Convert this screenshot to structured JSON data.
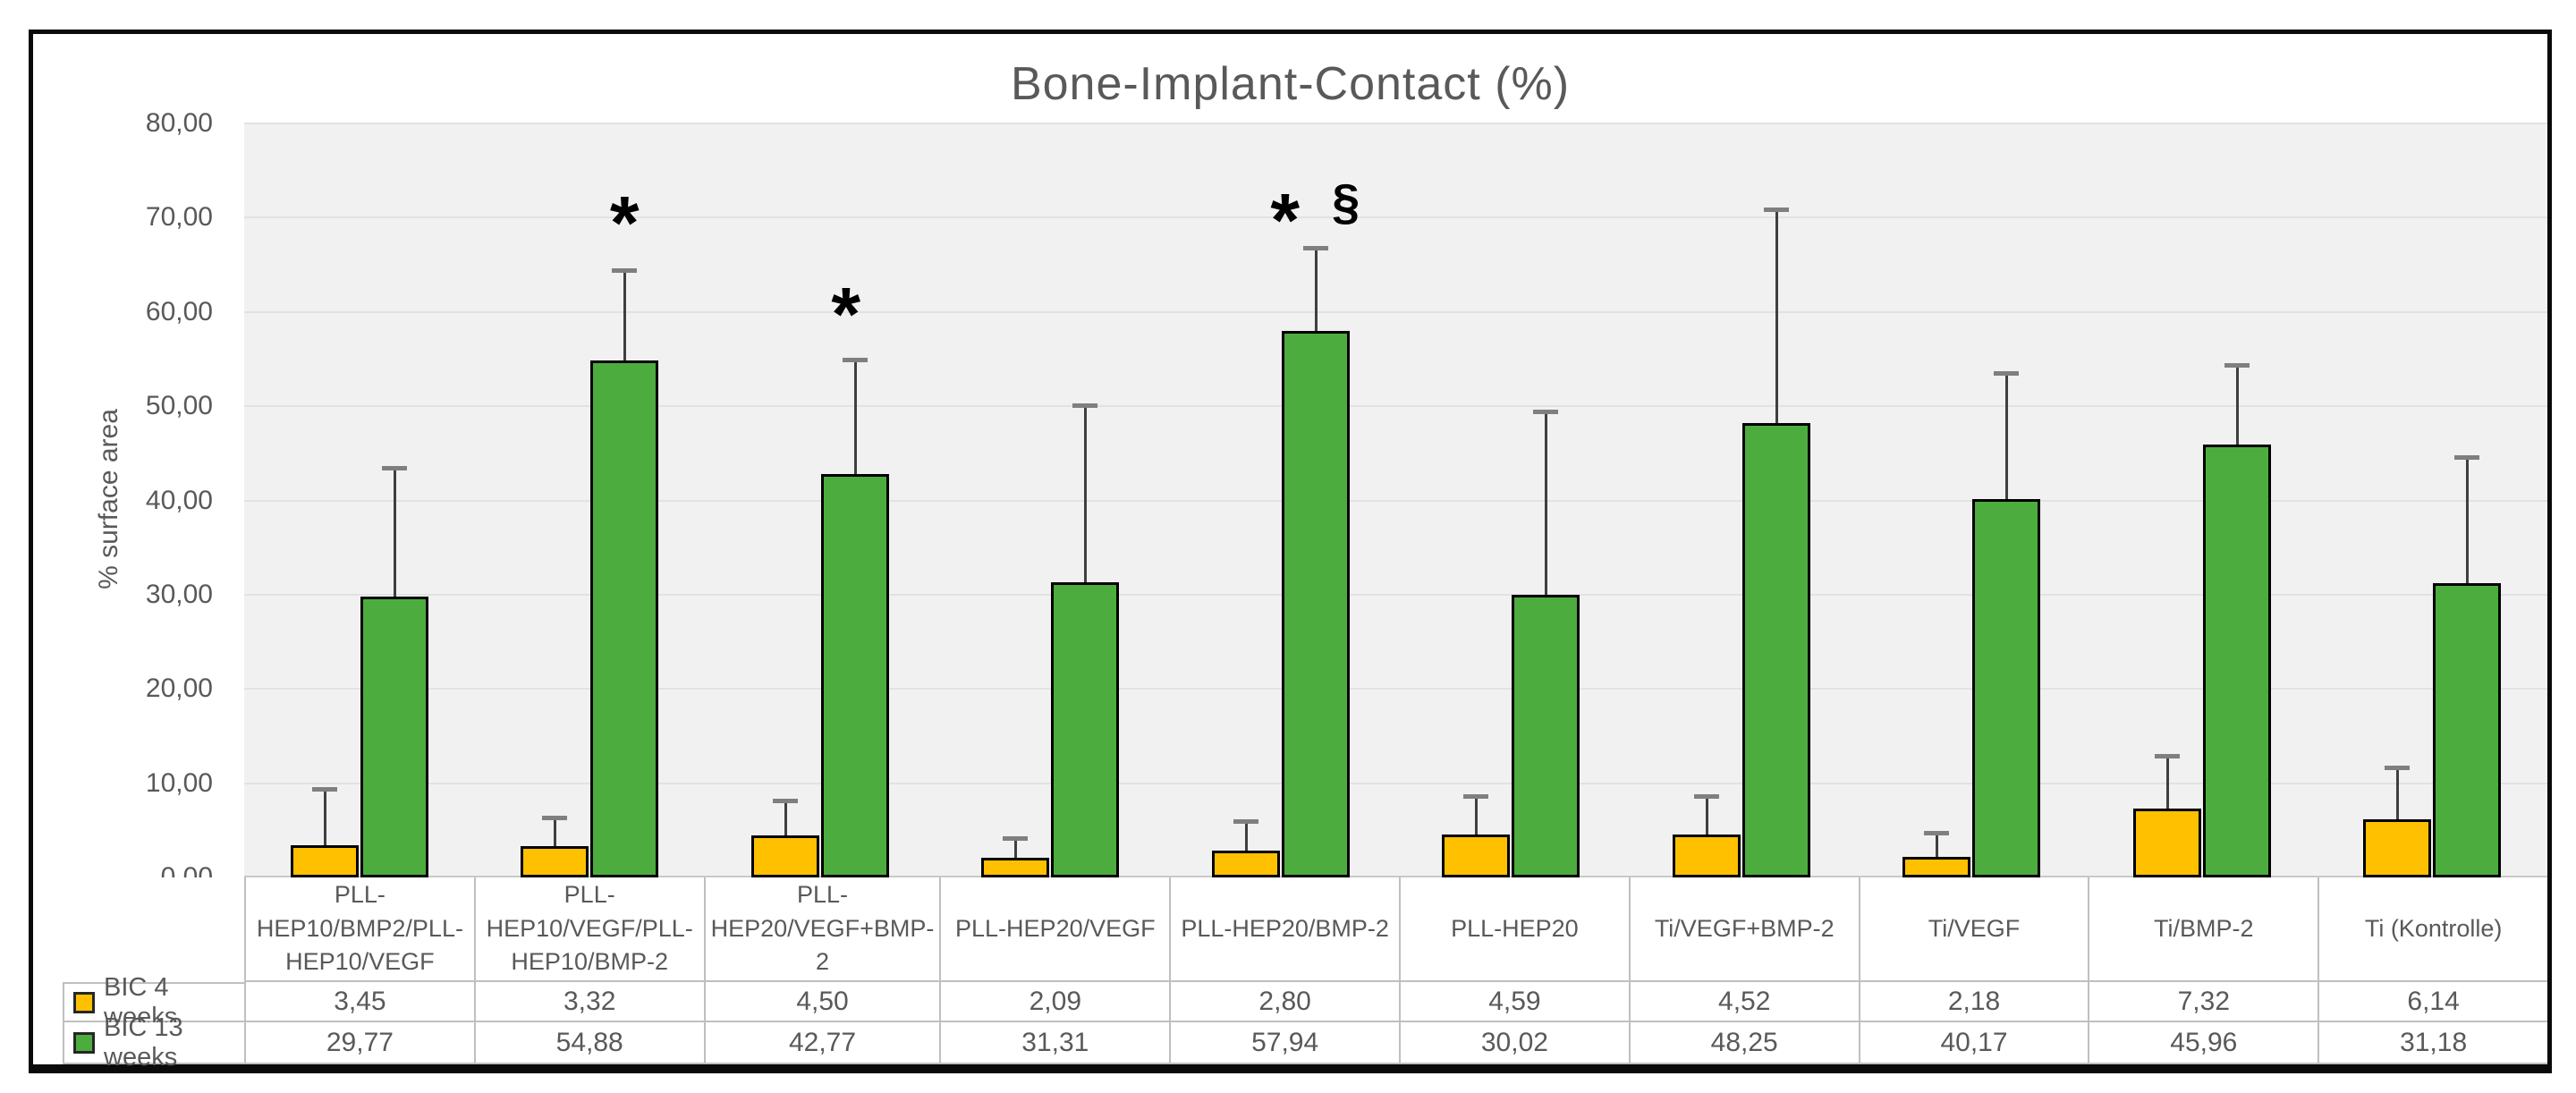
{
  "chart_data": {
    "type": "bar",
    "title": "Bone-Implant-Contact (%)",
    "ylabel": "% surface area",
    "ylim": [
      0,
      80
    ],
    "ytick_step": 10,
    "y_ticks": [
      "0,00",
      "10,00",
      "20,00",
      "30,00",
      "40,00",
      "50,00",
      "60,00",
      "70,00",
      "80,00"
    ],
    "grid": true,
    "legend_position": "table-left",
    "categories": [
      "PLL-HEP10/BMP2/PLL-HEP10/VEGF",
      "PLL-HEP10/VEGF/PLL-HEP10/BMP-2",
      "PLL-HEP20/VEGF+BMP-2",
      "PLL-HEP20/VEGF",
      "PLL-HEP20/BMP-2",
      "PLL-HEP20",
      "Ti/VEGF+BMP-2",
      "Ti/VEGF",
      "Ti/BMP-2",
      "Ti (Kontrolle)"
    ],
    "series": [
      {
        "name": "BIC 4 weeks",
        "color": "#FFC000",
        "values": [
          3.45,
          3.32,
          4.5,
          2.09,
          2.8,
          4.59,
          4.52,
          2.18,
          7.32,
          6.14
        ],
        "error_top": [
          9.4,
          6.4,
          8.2,
          4.2,
          6.0,
          8.6,
          8.6,
          4.7,
          12.9,
          11.7
        ]
      },
      {
        "name": "BIC 13 weeks",
        "color": "#4CAD3E",
        "values": [
          29.77,
          54.88,
          42.77,
          31.31,
          57.94,
          30.02,
          48.25,
          40.17,
          45.96,
          31.18
        ],
        "error_top": [
          43.5,
          64.4,
          54.9,
          50.1,
          66.8,
          49.4,
          70.9,
          53.5,
          54.4,
          44.6
        ]
      }
    ],
    "annotations": [
      {
        "category_index": 1,
        "text": "*",
        "y": 71.2,
        "dx": 0
      },
      {
        "category_index": 2,
        "text": "*",
        "y": 61.5,
        "dx": -10
      },
      {
        "category_index": 4,
        "text": "*",
        "y": 71.5,
        "dx": -34
      },
      {
        "category_index": 4,
        "text": "§",
        "y": 71.3,
        "dx": 34
      }
    ]
  },
  "table": {
    "row_headers": [
      "BIC 4 weeks",
      "BIC 13 weeks"
    ],
    "rows": [
      [
        "3,45",
        "3,32",
        "4,50",
        "2,09",
        "2,80",
        "4,59",
        "4,52",
        "2,18",
        "7,32",
        "6,14"
      ],
      [
        "29,77",
        "54,88",
        "42,77",
        "31,31",
        "57,94",
        "30,02",
        "48,25",
        "40,17",
        "45,96",
        "31,18"
      ]
    ]
  }
}
